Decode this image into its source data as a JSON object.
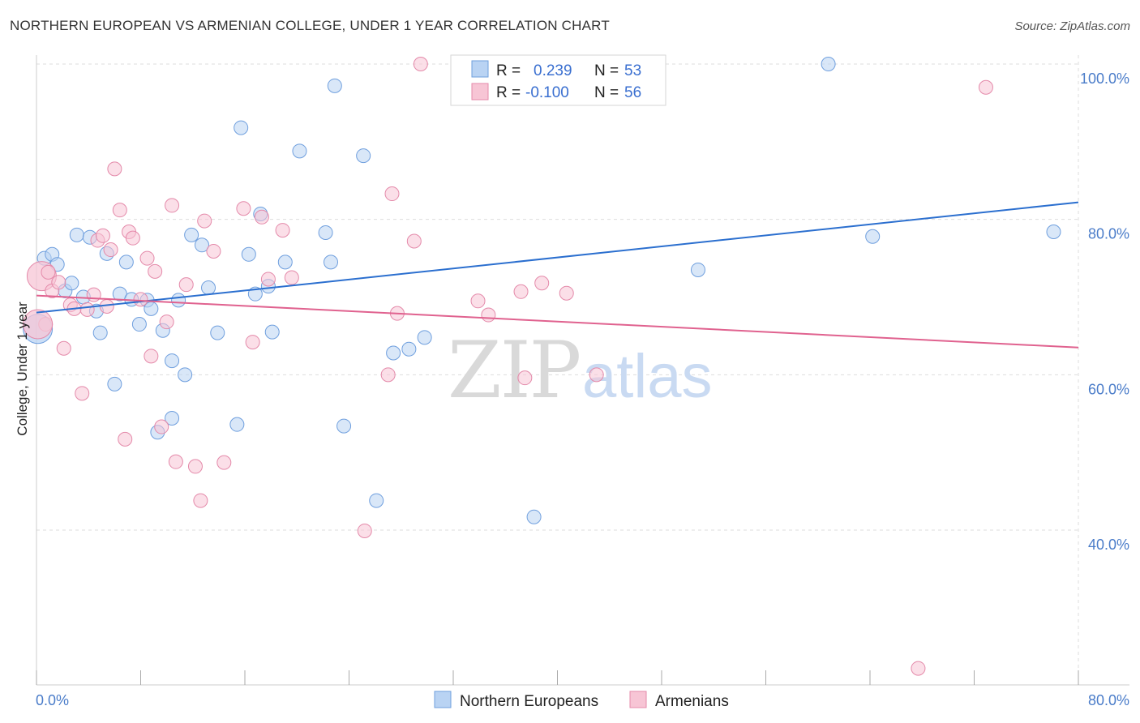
{
  "title": "NORTHERN EUROPEAN VS ARMENIAN COLLEGE, UNDER 1 YEAR CORRELATION CHART",
  "source": "Source: ZipAtlas.com",
  "watermark": {
    "zip": "ZIP",
    "atlas": "atlas"
  },
  "colors": {
    "blue_fill": "#b9d3f3",
    "blue_stroke": "#6f9fde",
    "blue_line": "#2b6fcf",
    "pink_fill": "#f7c5d5",
    "pink_stroke": "#e48aaa",
    "pink_line": "#e0628f",
    "grid": "#dddddd",
    "tick_text": "#4a7cc9"
  },
  "legend": {
    "rows": [
      {
        "r_label": "R = ",
        "r_value": "0.239",
        "n_label": "N = ",
        "n_value": "53"
      },
      {
        "r_label": "R = ",
        "r_value": "-0.100",
        "n_label": "N = ",
        "n_value": "56"
      }
    ]
  },
  "chart_data": {
    "type": "scatter",
    "title": "NORTHERN EUROPEAN VS ARMENIAN COLLEGE, UNDER 1 YEAR CORRELATION CHART",
    "xlabel": "",
    "ylabel": "College, Under 1 year",
    "xlim": [
      0,
      80
    ],
    "ylim": [
      20,
      102
    ],
    "x_tick_labels": [
      "0.0%",
      "80.0%"
    ],
    "y_ticks": [
      {
        "value": 40,
        "label": "40.0%"
      },
      {
        "value": 60,
        "label": "60.0%"
      },
      {
        "value": 80,
        "label": "80.0%"
      },
      {
        "value": 100,
        "label": "100.0%"
      }
    ],
    "grid": true,
    "legend_position": "top-center",
    "series": [
      {
        "name": "Northern Europeans",
        "color": "#6f9fde",
        "trend": {
          "x": [
            0,
            80
          ],
          "y": [
            68.0,
            82.2
          ]
        },
        "points": [
          [
            0.6,
            75
          ],
          [
            1.2,
            75.5
          ],
          [
            1.6,
            74.2
          ],
          [
            2.2,
            70.8
          ],
          [
            2.7,
            71.8
          ],
          [
            3.1,
            78
          ],
          [
            3.6,
            70
          ],
          [
            4.1,
            77.7
          ],
          [
            4.6,
            68.2
          ],
          [
            4.9,
            65.4
          ],
          [
            5.4,
            75.6
          ],
          [
            6.0,
            58.8
          ],
          [
            6.4,
            70.4
          ],
          [
            6.9,
            74.5
          ],
          [
            7.3,
            69.7
          ],
          [
            7.9,
            66.5
          ],
          [
            8.5,
            69.6
          ],
          [
            8.8,
            68.5
          ],
          [
            9.7,
            65.7
          ],
          [
            10.4,
            61.8
          ],
          [
            10.9,
            69.6
          ],
          [
            11.4,
            60
          ],
          [
            11.9,
            78
          ],
          [
            12.7,
            76.7
          ],
          [
            13.2,
            71.2
          ],
          [
            13.9,
            65.4
          ],
          [
            15.4,
            53.6
          ],
          [
            15.7,
            91.8
          ],
          [
            16.3,
            75.5
          ],
          [
            16.8,
            70.4
          ],
          [
            17.2,
            80.7
          ],
          [
            17.8,
            71.4
          ],
          [
            18.1,
            65.5
          ],
          [
            19.1,
            74.5
          ],
          [
            20.2,
            88.8
          ],
          [
            22.2,
            78.3
          ],
          [
            22.6,
            74.5
          ],
          [
            22.9,
            97.2
          ],
          [
            23.6,
            53.4
          ],
          [
            25.1,
            88.2
          ],
          [
            26.1,
            43.8
          ],
          [
            27.4,
            62.8
          ],
          [
            28.6,
            63.3
          ],
          [
            29.8,
            64.8
          ],
          [
            34.7,
            100
          ],
          [
            38.2,
            41.7
          ],
          [
            50.8,
            73.5
          ],
          [
            60.8,
            100
          ],
          [
            64.2,
            77.8
          ],
          [
            78.1,
            78.4
          ],
          [
            10.4,
            54.4
          ],
          [
            9.3,
            52.6
          ],
          [
            0.1,
            65.9
          ]
        ]
      },
      {
        "name": "Armenians",
        "color": "#e48aaa",
        "trend": {
          "x": [
            0,
            80
          ],
          "y": [
            70.2,
            63.5
          ]
        },
        "points": [
          [
            0.4,
            72.7
          ],
          [
            0.7,
            66.5
          ],
          [
            0.9,
            73.2
          ],
          [
            1.2,
            70.8
          ],
          [
            1.7,
            71.9
          ],
          [
            2.1,
            63.4
          ],
          [
            2.6,
            69
          ],
          [
            2.9,
            68.5
          ],
          [
            3.5,
            57.6
          ],
          [
            3.9,
            68.4
          ],
          [
            4.4,
            70.3
          ],
          [
            4.7,
            77.3
          ],
          [
            5.1,
            77.9
          ],
          [
            5.4,
            68.8
          ],
          [
            5.7,
            76.1
          ],
          [
            6.0,
            86.5
          ],
          [
            6.4,
            81.2
          ],
          [
            6.8,
            51.7
          ],
          [
            7.1,
            78.4
          ],
          [
            7.4,
            77.6
          ],
          [
            8.0,
            69.7
          ],
          [
            8.5,
            75
          ],
          [
            8.8,
            62.4
          ],
          [
            9.1,
            73.3
          ],
          [
            9.6,
            53.3
          ],
          [
            10.0,
            66.8
          ],
          [
            10.4,
            81.8
          ],
          [
            10.7,
            48.8
          ],
          [
            11.5,
            71.6
          ],
          [
            12.2,
            48.2
          ],
          [
            12.6,
            43.8
          ],
          [
            12.9,
            79.8
          ],
          [
            13.6,
            75.9
          ],
          [
            14.4,
            48.7
          ],
          [
            15.9,
            81.4
          ],
          [
            16.6,
            64.2
          ],
          [
            17.3,
            80.3
          ],
          [
            17.8,
            72.3
          ],
          [
            18.9,
            78.6
          ],
          [
            19.6,
            72.5
          ],
          [
            25.2,
            39.9
          ],
          [
            27.0,
            60
          ],
          [
            27.3,
            83.3
          ],
          [
            27.7,
            67.9
          ],
          [
            29.0,
            77.2
          ],
          [
            29.5,
            100
          ],
          [
            33.9,
            69.5
          ],
          [
            34.7,
            67.7
          ],
          [
            37.2,
            70.7
          ],
          [
            37.5,
            59.6
          ],
          [
            38.8,
            71.8
          ],
          [
            40.7,
            70.5
          ],
          [
            43.0,
            60
          ],
          [
            72.9,
            97
          ],
          [
            67.7,
            22.2
          ],
          [
            0.1,
            66.5
          ]
        ]
      }
    ]
  },
  "bottom_legend": {
    "items": [
      {
        "label": "Northern Europeans",
        "swatch": "blue"
      },
      {
        "label": "Armenians",
        "swatch": "pink"
      }
    ]
  }
}
